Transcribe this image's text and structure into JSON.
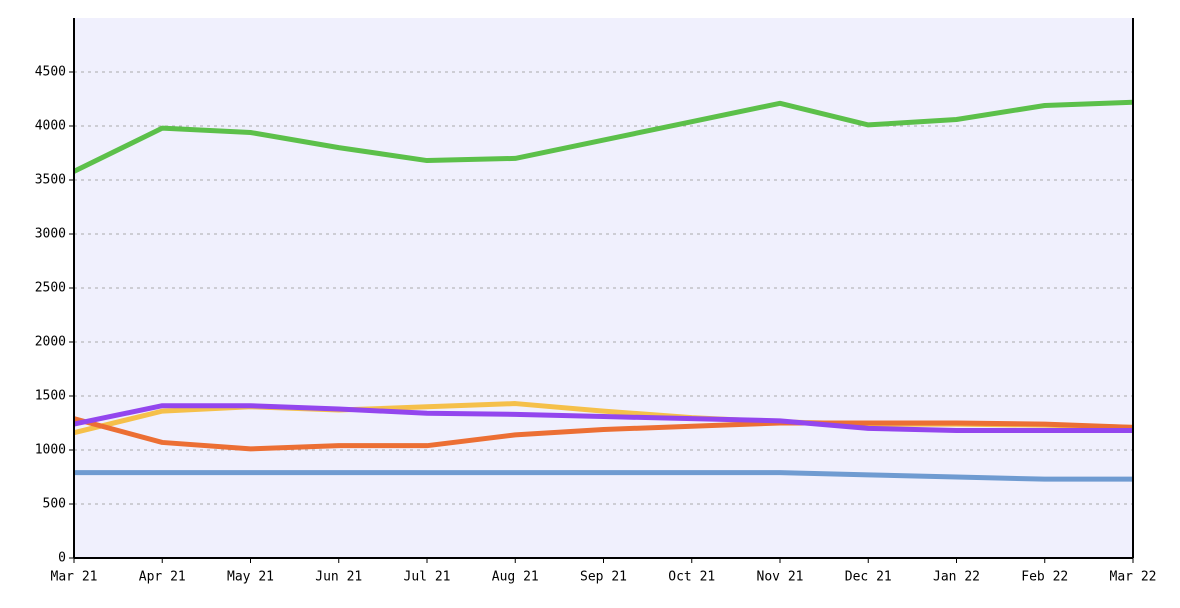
{
  "chart_data": {
    "type": "line",
    "categories": [
      "Mar 21",
      "Apr 21",
      "May 21",
      "Jun 21",
      "Jul 21",
      "Aug 21",
      "Sep 21",
      "Oct 21",
      "Nov 21",
      "Dec 21",
      "Jan 22",
      "Feb 22",
      "Mar 22"
    ],
    "series": [
      {
        "color": "#5cc04a",
        "values": [
          3580,
          3980,
          3940,
          3800,
          3680,
          3700,
          3870,
          4040,
          4210,
          4010,
          4060,
          4190,
          4220
        ]
      },
      {
        "color": "#f5c04a",
        "values": [
          1160,
          1360,
          1400,
          1370,
          1400,
          1430,
          1360,
          1300,
          1260,
          1240,
          1240,
          1230,
          1210
        ]
      },
      {
        "color": "#ec6f34",
        "values": [
          1290,
          1070,
          1010,
          1040,
          1040,
          1140,
          1190,
          1220,
          1250,
          1250,
          1250,
          1240,
          1210
        ]
      },
      {
        "color": "#9346ee",
        "values": [
          1240,
          1410,
          1410,
          1380,
          1340,
          1330,
          1310,
          1290,
          1270,
          1200,
          1180,
          1180,
          1180
        ]
      },
      {
        "color": "#6f9bd1",
        "values": [
          790,
          790,
          790,
          790,
          790,
          790,
          790,
          790,
          790,
          770,
          750,
          730,
          730
        ]
      }
    ],
    "ylim": [
      0,
      5000
    ],
    "yticks": [
      0,
      500,
      1000,
      1500,
      2000,
      2500,
      3000,
      3500,
      4000,
      4500
    ],
    "grid": true
  }
}
